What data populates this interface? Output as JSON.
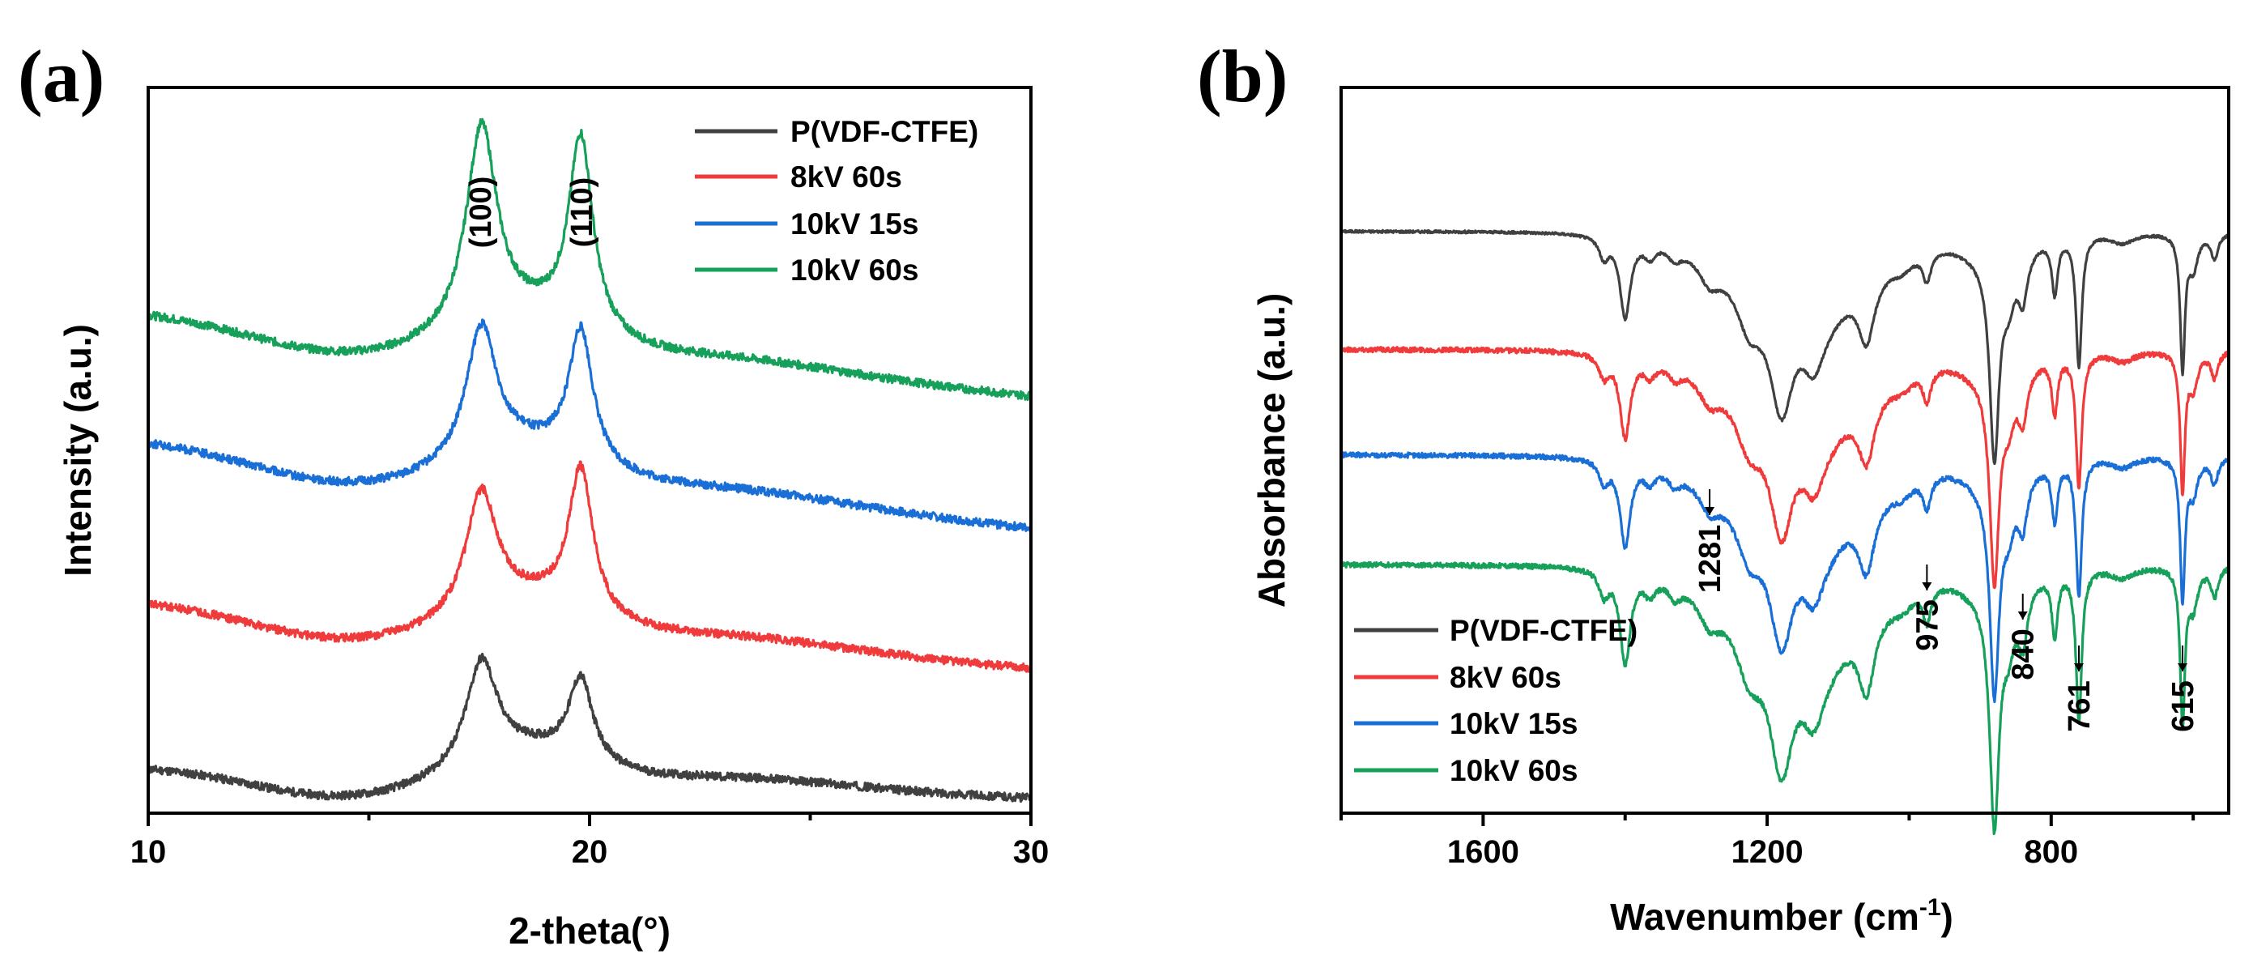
{
  "chart_data": [
    {
      "panel_label": "(a)",
      "type": "line",
      "title": "",
      "xlabel": "2-theta(°)",
      "ylabel": "Intensity (a.u.)",
      "xlim": [
        10,
        30
      ],
      "xticks": [
        "10",
        "20",
        "30"
      ],
      "yticks_shown": false,
      "legend_position": "top-right",
      "peak_labels": [
        {
          "text": "(100)",
          "x": 17.5
        },
        {
          "text": "(110)",
          "x": 19.8
        }
      ],
      "series": [
        {
          "name": "P(VDF-CTFE)",
          "color": "#404040",
          "baseline_start": 0.55,
          "baseline_end": 0.18,
          "peak_heights": [
            1.25,
            1.0
          ]
        },
        {
          "name": "8kV 60s",
          "color": "#ef3b3b",
          "baseline_start": 2.55,
          "baseline_end": 1.75,
          "peak_heights": [
            1.45,
            1.75
          ]
        },
        {
          "name": "10kV 15s",
          "color": "#1a6fd6",
          "baseline_start": 4.5,
          "baseline_end": 3.45,
          "peak_heights": [
            1.6,
            1.6
          ]
        },
        {
          "name": "10kV 60s",
          "color": "#16a05a",
          "baseline_start": 6.05,
          "baseline_end": 5.05,
          "peak_heights": [
            2.45,
            2.35
          ]
        }
      ]
    },
    {
      "panel_label": "(b)",
      "type": "line",
      "title": "",
      "xlabel": "Wavenumber (cm",
      "xlabel_sup": "-1",
      "xlabel_close": ")",
      "ylabel": "Absorbance (a.u.)",
      "xlim": [
        1800,
        550
      ],
      "xticks": [
        "1600",
        "1200",
        "800"
      ],
      "yticks_shown": false,
      "legend_position": "bottom-left",
      "annotations": [
        {
          "text": "1281",
          "x": 1281
        },
        {
          "text": "975",
          "x": 975
        },
        {
          "text": "840",
          "x": 840
        },
        {
          "text": "761",
          "x": 761
        },
        {
          "text": "615",
          "x": 615
        }
      ],
      "series": [
        {
          "name": "P(VDF-CTFE)",
          "color": "#404040",
          "offset": 6.9
        },
        {
          "name": "8kV 60s",
          "color": "#ef3b3b",
          "offset": 5.5
        },
        {
          "name": "10kV 15s",
          "color": "#1a6fd6",
          "offset": 4.25
        },
        {
          "name": "10kV 60s",
          "color": "#16a05a",
          "offset": 2.95
        }
      ]
    }
  ]
}
